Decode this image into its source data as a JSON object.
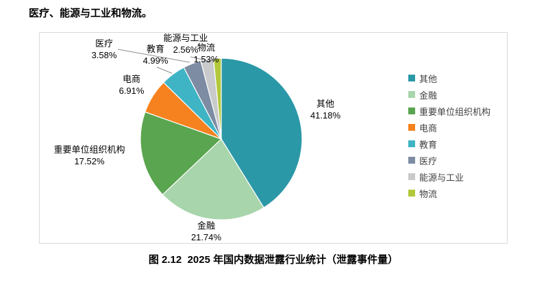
{
  "page": {
    "intro_text": "医疗、能源与工业和物流。",
    "caption": "图 2.12  2025 年国内数据泄露行业统计（泄露事件量）"
  },
  "chart_data": {
    "type": "pie",
    "title": "2025 年国内数据泄露行业统计（泄露事件量）",
    "legend_position": "right",
    "start_angle_deg": -90,
    "direction": "clockwise",
    "unit": "%",
    "series": [
      {
        "label": "其他",
        "value": 41.18,
        "display": "41.18%",
        "color": "#2b98a8"
      },
      {
        "label": "金融",
        "value": 21.74,
        "display": "21.74%",
        "color": "#a8d5ab"
      },
      {
        "label": "重要单位组织机构",
        "value": 17.52,
        "display": "17.52%",
        "color": "#5aa54f"
      },
      {
        "label": "电商",
        "value": 6.91,
        "display": "6.91%",
        "color": "#f5821e"
      },
      {
        "label": "教育",
        "value": 4.99,
        "display": "4.99%",
        "color": "#3fb4c4"
      },
      {
        "label": "医疗",
        "value": 3.58,
        "display": "3.58%",
        "color": "#7d8ca3"
      },
      {
        "label": "能源与工业",
        "value": 2.56,
        "display": "2.56%",
        "color": "#c9cacc"
      },
      {
        "label": "物流",
        "value": 1.53,
        "display": "1.53%",
        "color": "#b2c83a"
      }
    ]
  }
}
